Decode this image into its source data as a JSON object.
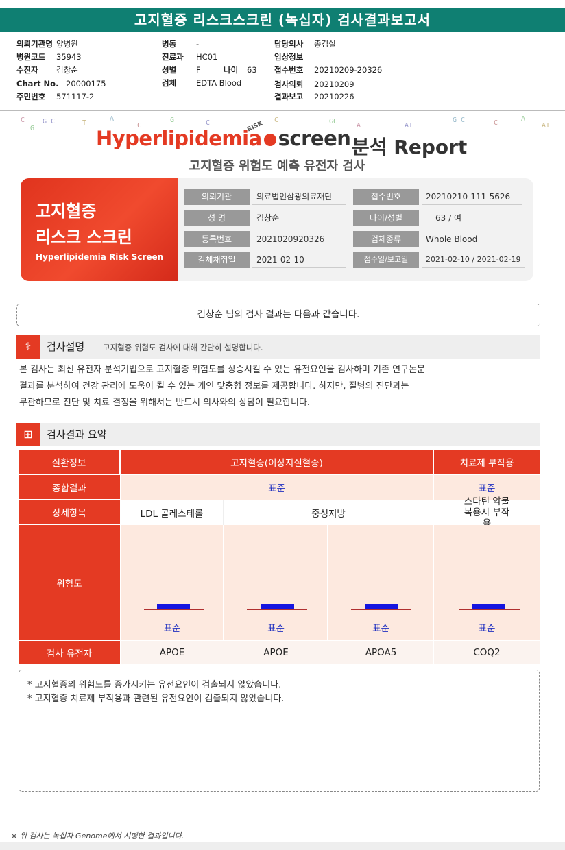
{
  "title": "고지혈증 리스크스크린 (녹십자) 검사결과보고서",
  "header": {
    "col1": [
      {
        "k": "의뢰기관명",
        "v": "양병원"
      },
      {
        "k": "병원코드",
        "v": "35943"
      },
      {
        "k": "수진자",
        "v": "김창순"
      },
      {
        "k": "Chart No.",
        "v": "20000175"
      },
      {
        "k": "주민번호",
        "v": "571117-2"
      }
    ],
    "col2": [
      {
        "k": "병동",
        "v": "-"
      },
      {
        "k": "진료과",
        "v": "HC01"
      },
      {
        "k": "성별",
        "v": "F"
      },
      {
        "k": "검체",
        "v": "EDTA Blood"
      }
    ],
    "age": {
      "k": "나이",
      "v": "63"
    },
    "col3": [
      {
        "k": "담당의사",
        "v": "종검실"
      },
      {
        "k": "임상정보",
        "v": ""
      },
      {
        "k": "접수번호",
        "v": "20210209-20326"
      },
      {
        "k": "검사의뢰",
        "v": "20210209"
      },
      {
        "k": "결과보고",
        "v": "20210226"
      }
    ]
  },
  "logo": {
    "word1": "Hyperlipidemia",
    "risk": "RISK",
    "word2": "screen",
    "report": "분석 Report"
  },
  "subtitle": "고지혈증 위험도 예측 유전자 검사",
  "card": {
    "title1": "고지혈증",
    "title2": "리스크 스크린",
    "title3": "Hyperlipidemia Risk Screen",
    "fields": [
      {
        "label": "의뢰기관",
        "value": "의료법인삼광의료재단"
      },
      {
        "label": "접수번호",
        "value": "20210210-111-5626"
      },
      {
        "label": "성 명",
        "value": "김창순"
      },
      {
        "label": "나이/성별",
        "value": "63 / 여"
      },
      {
        "label": "등록번호",
        "value": "2021020920326"
      },
      {
        "label": "검체종류",
        "value": "Whole Blood"
      },
      {
        "label": "검체채취일",
        "value": "2021-02-10"
      },
      {
        "label": "접수일/보고일",
        "value": "2021-02-10 / 2021-02-19"
      }
    ]
  },
  "message": "김창순 님의 검사 결과는 다음과 같습니다.",
  "section1": {
    "title": "검사설명",
    "desc": "고지혈증 위험도 검사에 대해 간단히 설명합니다."
  },
  "description": [
    "본 검사는 최신 유전자 분석기법으로 고지혈증 위험도를 상승시킬 수 있는 유전요인을 검사하며 기존 연구논문",
    "결과를 분석하여 건강 관리에 도움이 될 수 있는 개인 맞춤형 정보를 제공합니다. 하지만, 질병의 진단과는",
    "무관하므로 진단 및 치료 결정을 위해서는 반드시 의사와의 상담이 필요합니다."
  ],
  "section2": {
    "title": "검사결과 요약"
  },
  "summary": {
    "row_labels": {
      "disease": "질환정보",
      "overall": "종합결과",
      "detail": "상세항목",
      "risk": "위험도",
      "gene": "검사 유전자"
    },
    "disease_main": "고지혈증(이상지질혈증)",
    "disease_side": "치료제 부작용",
    "overall_main": "표준",
    "overall_side": "표준",
    "details": [
      "LDL 콜레스테롤",
      "중성지방",
      "스타틴 약물 복용시 부작용"
    ],
    "risk_levels": [
      {
        "label": "표준",
        "level": "standard"
      },
      {
        "label": "표준",
        "level": "standard"
      },
      {
        "label": "표준",
        "level": "standard"
      },
      {
        "label": "표준",
        "level": "standard"
      }
    ],
    "genes": [
      "APOE",
      "APOE",
      "APOA5",
      "COQ2"
    ]
  },
  "notes": [
    "* 고지혈증의 위험도를 증가시키는 유전요인이 검출되지 않았습니다.",
    "* 고지혈증 치료제 부작용과 관련된 유전요인이 검출되지 않았습니다."
  ],
  "footer": "※ 위 검사는 녹십자 Genome에서 시행한 결과입니다."
}
